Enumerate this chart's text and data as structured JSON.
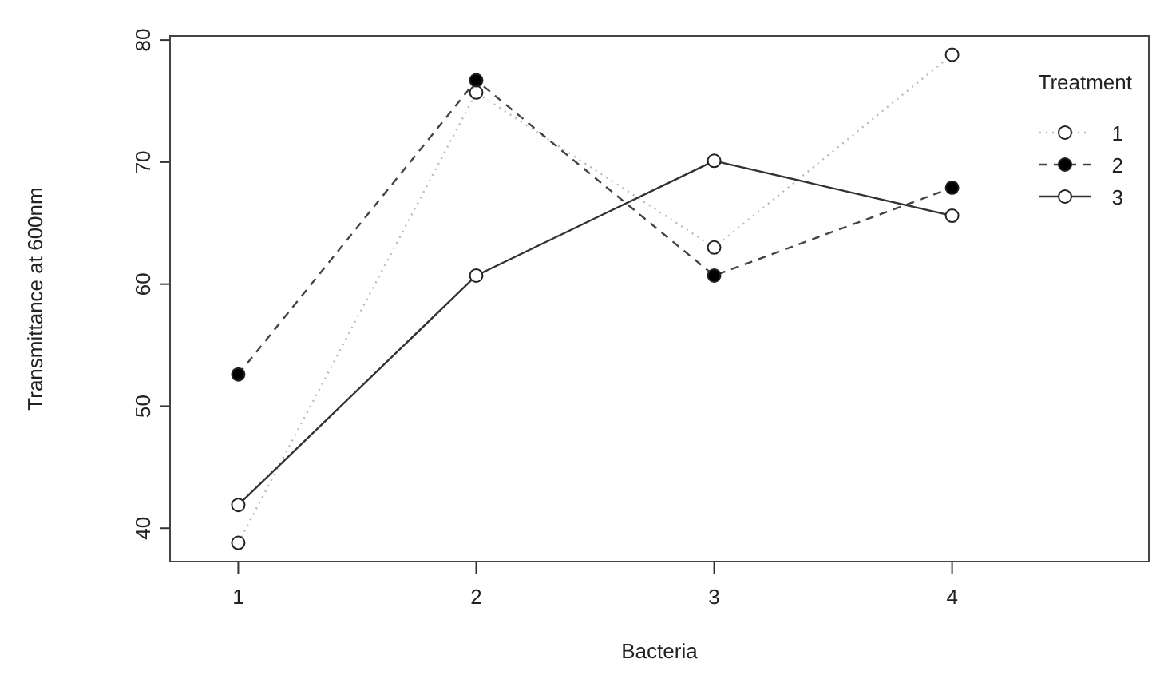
{
  "chart_data": {
    "type": "line",
    "xlabel": "Bacteria",
    "ylabel": "Transmittance at 600nm",
    "legend_title": "Treatment",
    "categories": [
      "1",
      "2",
      "3",
      "4"
    ],
    "series": [
      {
        "name": "1",
        "color": "#bbbbbb",
        "line_style": "dotted",
        "marker": "circle",
        "values": [
          38.8,
          75.7,
          63.0,
          78.8
        ]
      },
      {
        "name": "2",
        "color": "#444444",
        "line_style": "dashed",
        "marker": "circle",
        "values": [
          52.6,
          76.7,
          60.7,
          67.9
        ]
      },
      {
        "name": "3",
        "color": "#333333",
        "line_style": "solid",
        "marker": "circle",
        "values": [
          41.9,
          60.7,
          70.1,
          65.6
        ]
      }
    ],
    "ylim": [
      37.2,
      80.4
    ],
    "yticks": [
      40,
      50,
      60,
      70,
      80
    ],
    "grid": false,
    "legend": "top right"
  }
}
